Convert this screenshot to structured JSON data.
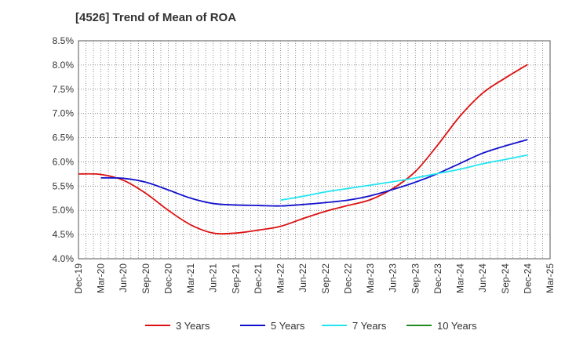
{
  "chart_data": {
    "type": "line",
    "title": "[4526]  Trend of Mean of ROA",
    "xlabel": "",
    "ylabel": "",
    "ylim": [
      4.0,
      8.5
    ],
    "ytick_step": 0.5,
    "ytick_format": "%",
    "grid": true,
    "legend_position": "bottom",
    "x": [
      "Dec-19",
      "Mar-20",
      "Jun-20",
      "Sep-20",
      "Dec-20",
      "Mar-21",
      "Jun-21",
      "Sep-21",
      "Dec-21",
      "Mar-22",
      "Jun-22",
      "Sep-22",
      "Dec-22",
      "Mar-23",
      "Jun-23",
      "Sep-23",
      "Dec-23",
      "Mar-24",
      "Jun-24",
      "Sep-24",
      "Dec-24",
      "Mar-25"
    ],
    "series": [
      {
        "name": "3 Years",
        "color": "#dd1111",
        "values": [
          5.75,
          5.74,
          5.62,
          5.35,
          5.0,
          4.7,
          4.53,
          4.53,
          4.59,
          4.67,
          4.83,
          4.98,
          5.1,
          5.22,
          5.45,
          5.8,
          6.35,
          6.95,
          7.42,
          7.73,
          8.01,
          null
        ]
      },
      {
        "name": "5 Years",
        "color": "#1111cc",
        "values": [
          null,
          5.67,
          5.66,
          5.58,
          5.42,
          5.25,
          5.14,
          5.11,
          5.1,
          5.09,
          5.12,
          5.16,
          5.21,
          5.3,
          5.43,
          5.58,
          5.76,
          5.97,
          6.18,
          6.33,
          6.46,
          null
        ]
      },
      {
        "name": "7 Years",
        "color": "#22e5f0",
        "values": [
          null,
          null,
          null,
          null,
          null,
          null,
          null,
          null,
          null,
          5.21,
          5.29,
          5.38,
          5.45,
          5.52,
          5.59,
          5.67,
          5.76,
          5.85,
          5.96,
          6.05,
          6.14,
          null
        ]
      },
      {
        "name": "10 Years",
        "color": "#228b22",
        "values": [
          null,
          null,
          null,
          null,
          null,
          null,
          null,
          null,
          null,
          null,
          null,
          null,
          null,
          null,
          null,
          null,
          null,
          null,
          null,
          null,
          null,
          null
        ]
      }
    ]
  }
}
